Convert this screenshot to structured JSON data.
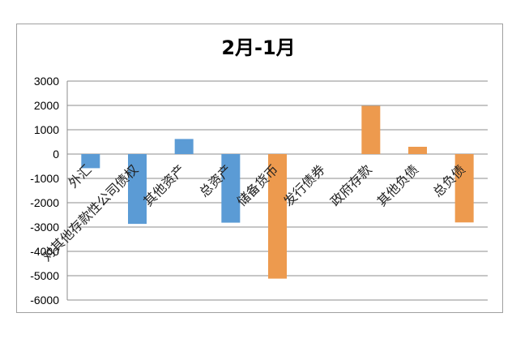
{
  "chart_data": {
    "type": "bar",
    "title": "2月-1月",
    "xlabel": "",
    "ylabel": "",
    "ylim": [
      -6000,
      3000
    ],
    "yticks": [
      3000,
      2000,
      1000,
      0,
      -1000,
      -2000,
      -3000,
      -4000,
      -5000,
      -6000
    ],
    "y_tick_labels": [
      "3000",
      "2000",
      "1000",
      "0",
      "-1000",
      "-2000",
      "-3000",
      "-4000",
      "-5000",
      "-6000"
    ],
    "grid": true,
    "legend": "none",
    "categories": [
      "外汇",
      "对其他存款性公司债权",
      "其他资产",
      "总资产",
      "储备货币",
      "发行债券",
      "政府存款",
      "其他负债",
      "总负债"
    ],
    "values": [
      -580,
      -2870,
      620,
      -2820,
      -5120,
      0,
      1980,
      300,
      -2810
    ],
    "bar_colors": [
      "#5b9bd5",
      "#5b9bd5",
      "#5b9bd5",
      "#5b9bd5",
      "#ed9a4e",
      "#ed9a4e",
      "#ed9a4e",
      "#ed9a4e",
      "#ed9a4e"
    ]
  }
}
